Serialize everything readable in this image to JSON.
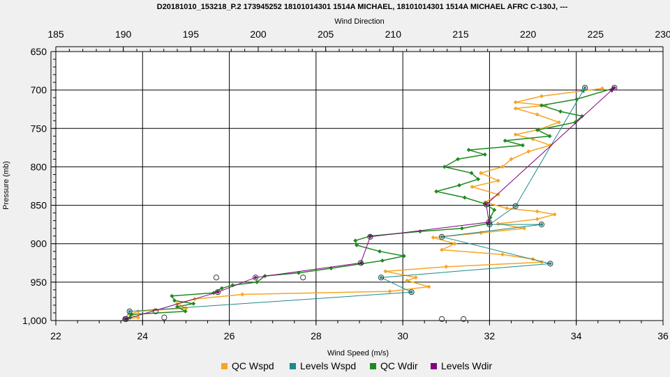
{
  "chart_data": {
    "type": "line",
    "title": "D20181010_153218_P.2 173945252 18101014301 1514A MICHAEL, 18101014301 1514A MICHAEL AFRC C-130J, ---",
    "x_top": {
      "label": "Wind Direction",
      "range": [
        185,
        230
      ],
      "ticks": [
        "185",
        "190",
        "195",
        "200",
        "205",
        "210",
        "215",
        "220",
        "225",
        "230"
      ]
    },
    "x_bottom": {
      "label": "Wind Speed (m/s)",
      "range": [
        22,
        36
      ],
      "ticks": [
        "22",
        "24",
        "26",
        "28",
        "30",
        "32",
        "34",
        "36"
      ]
    },
    "y": {
      "label": "Pressure (mb)",
      "range": [
        650,
        1000
      ],
      "inverted": true,
      "ticks": [
        "650",
        "700",
        "750",
        "800",
        "850",
        "900",
        "950",
        "1,000"
      ],
      "tick_values": [
        650,
        700,
        750,
        800,
        850,
        900,
        950,
        1000
      ]
    },
    "grid": true,
    "legend_position": "bottom",
    "series": [
      {
        "name": "QC Wspd",
        "axis": "bottom",
        "color": "#f5a623",
        "marker": "diamond",
        "points": [
          [
            34.6,
            698
          ],
          [
            33.2,
            708
          ],
          [
            32.6,
            716
          ],
          [
            33.3,
            720
          ],
          [
            32.6,
            724
          ],
          [
            33.1,
            732
          ],
          [
            33.6,
            742
          ],
          [
            33.1,
            752
          ],
          [
            32.6,
            758
          ],
          [
            33.0,
            764
          ],
          [
            33.4,
            772
          ],
          [
            32.9,
            780
          ],
          [
            32.5,
            790
          ],
          [
            32.3,
            800
          ],
          [
            31.8,
            808
          ],
          [
            32.2,
            818
          ],
          [
            31.6,
            826
          ],
          [
            32.2,
            836
          ],
          [
            31.9,
            846
          ],
          [
            32.4,
            854
          ],
          [
            33.1,
            858
          ],
          [
            33.5,
            862
          ],
          [
            33.1,
            868
          ],
          [
            32.2,
            874
          ],
          [
            32.8,
            880
          ],
          [
            31.8,
            886
          ],
          [
            30.7,
            892
          ],
          [
            31.2,
            900
          ],
          [
            30.9,
            908
          ],
          [
            32.3,
            914
          ],
          [
            33.0,
            920
          ],
          [
            33.2,
            924
          ],
          [
            31.0,
            930
          ],
          [
            29.6,
            936
          ],
          [
            30.3,
            944
          ],
          [
            30.1,
            948
          ],
          [
            30.6,
            956
          ],
          [
            29.7,
            962
          ],
          [
            26.3,
            966
          ],
          [
            25.2,
            972
          ],
          [
            24.8,
            978
          ],
          [
            25.0,
            984
          ],
          [
            23.9,
            988
          ],
          [
            23.7,
            992
          ],
          [
            23.9,
            996
          ],
          [
            23.6,
            998
          ]
        ]
      },
      {
        "name": "Levels Wspd",
        "axis": "bottom",
        "color": "#1a8a8a",
        "marker": "circle",
        "points": [
          [
            34.2,
            697
          ],
          [
            32.6,
            851
          ],
          [
            32.0,
            875
          ],
          [
            33.2,
            875
          ],
          [
            30.9,
            891
          ],
          [
            33.4,
            926
          ],
          [
            29.5,
            944
          ],
          [
            30.2,
            963
          ],
          [
            23.7,
            988
          ],
          [
            23.6,
            998
          ]
        ]
      },
      {
        "name": "QC Wdir",
        "axis": "top",
        "color": "#1e8a1e",
        "marker": "diamond",
        "points": [
          [
            226.3,
            698
          ],
          [
            223.6,
            712
          ],
          [
            221.0,
            720
          ],
          [
            222.4,
            728
          ],
          [
            224.0,
            734
          ],
          [
            223.5,
            742
          ],
          [
            220.7,
            752
          ],
          [
            221.6,
            760
          ],
          [
            218.3,
            766
          ],
          [
            219.6,
            772
          ],
          [
            215.6,
            778
          ],
          [
            216.8,
            784
          ],
          [
            214.8,
            790
          ],
          [
            213.8,
            800
          ],
          [
            215.8,
            808
          ],
          [
            216.3,
            816
          ],
          [
            214.9,
            824
          ],
          [
            213.2,
            832
          ],
          [
            215.3,
            840
          ],
          [
            216.8,
            848
          ],
          [
            217.5,
            856
          ],
          [
            217.2,
            866
          ],
          [
            217.0,
            874
          ],
          [
            215.1,
            880
          ],
          [
            212.0,
            884
          ],
          [
            208.3,
            890
          ],
          [
            207.2,
            896
          ],
          [
            207.3,
            902
          ],
          [
            209.0,
            910
          ],
          [
            210.8,
            916
          ],
          [
            209.2,
            922
          ],
          [
            207.7,
            926
          ],
          [
            205.4,
            932
          ],
          [
            203.0,
            938
          ],
          [
            200.5,
            942
          ],
          [
            199.9,
            950
          ],
          [
            198.1,
            954
          ],
          [
            197.3,
            958
          ],
          [
            196.7,
            964
          ],
          [
            193.6,
            968
          ],
          [
            193.8,
            974
          ],
          [
            195.2,
            978
          ],
          [
            194.0,
            982
          ],
          [
            194.6,
            988
          ],
          [
            190.6,
            992
          ],
          [
            190.5,
            996
          ]
        ]
      },
      {
        "name": "Levels Wdir",
        "axis": "top",
        "color": "#800080",
        "marker": "circle",
        "points": [
          [
            226.4,
            697
          ],
          [
            216.9,
            849
          ],
          [
            217.1,
            872
          ],
          [
            208.3,
            891
          ],
          [
            207.6,
            925
          ],
          [
            199.8,
            944
          ],
          [
            197.0,
            963
          ],
          [
            190.2,
            998
          ]
        ]
      }
    ],
    "extra_circles": [
      {
        "axis": "bottom",
        "x": 25.7,
        "y": 944
      },
      {
        "axis": "bottom",
        "x": 27.7,
        "y": 944
      },
      {
        "axis": "bottom",
        "x": 24.3,
        "y": 988
      },
      {
        "axis": "bottom",
        "x": 24.5,
        "y": 996
      },
      {
        "axis": "bottom",
        "x": 30.9,
        "y": 998
      },
      {
        "axis": "bottom",
        "x": 31.4,
        "y": 998
      }
    ]
  }
}
